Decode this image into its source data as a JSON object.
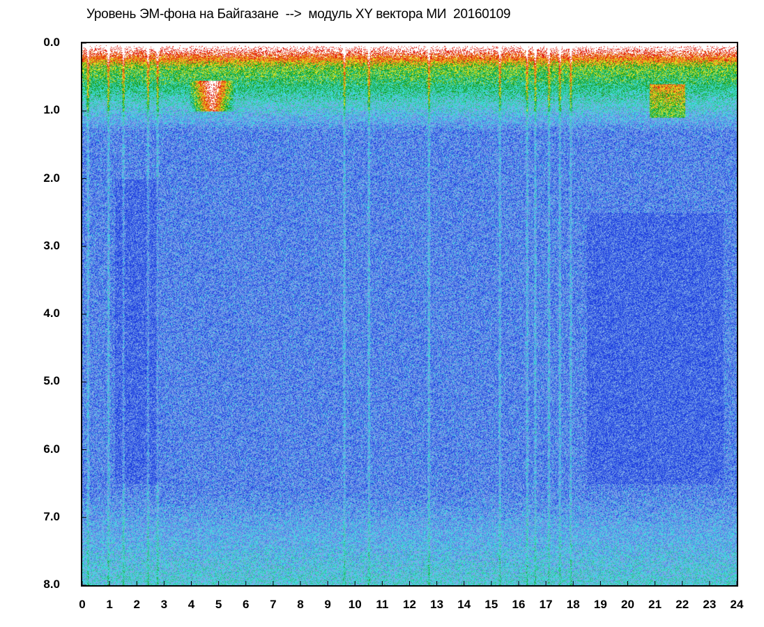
{
  "title": "Уровень ЭМ-фона на Байгазане  -->  модуль XY вектора МИ  20160109",
  "chart_data": {
    "type": "heatmap",
    "title": "Уровень ЭМ-фона на Байгазане  -->  модуль XY вектора МИ  20160109",
    "xlabel": "",
    "ylabel": "",
    "x_range": [
      0,
      24
    ],
    "y_range": [
      0.0,
      8.0
    ],
    "y_inverted": true,
    "x_ticks": [
      "0",
      "1",
      "2",
      "3",
      "4",
      "5",
      "6",
      "7",
      "8",
      "9",
      "10",
      "11",
      "12",
      "13",
      "14",
      "15",
      "16",
      "17",
      "18",
      "19",
      "20",
      "21",
      "22",
      "23",
      "24"
    ],
    "y_ticks": [
      "0.0",
      "1.0",
      "2.0",
      "3.0",
      "4.0",
      "5.0",
      "6.0",
      "7.0",
      "8.0"
    ],
    "colormap": [
      "#1f3fe0",
      "#4f7be6",
      "#7fa8e8",
      "#40d8e0",
      "#30c890",
      "#18a020",
      "#e0e020",
      "#f08020",
      "#e02010",
      "#ffffff"
    ],
    "grid": false,
    "legend": "none",
    "features": {
      "high_intensity_band_y": [
        0.0,
        0.9
      ],
      "vertical_streak_hours": [
        0.2,
        0.95,
        1.5,
        2.4,
        2.75,
        9.6,
        10.5,
        12.7,
        15.3,
        16.3,
        16.6,
        17.1,
        17.5,
        17.9
      ],
      "hot_patch": {
        "x": [
          3.9,
          5.6
        ],
        "y": [
          0.55,
          1.0
        ]
      },
      "secondary_patch": {
        "x": [
          20.8,
          22.1
        ],
        "y": [
          0.6,
          1.1
        ]
      }
    }
  }
}
